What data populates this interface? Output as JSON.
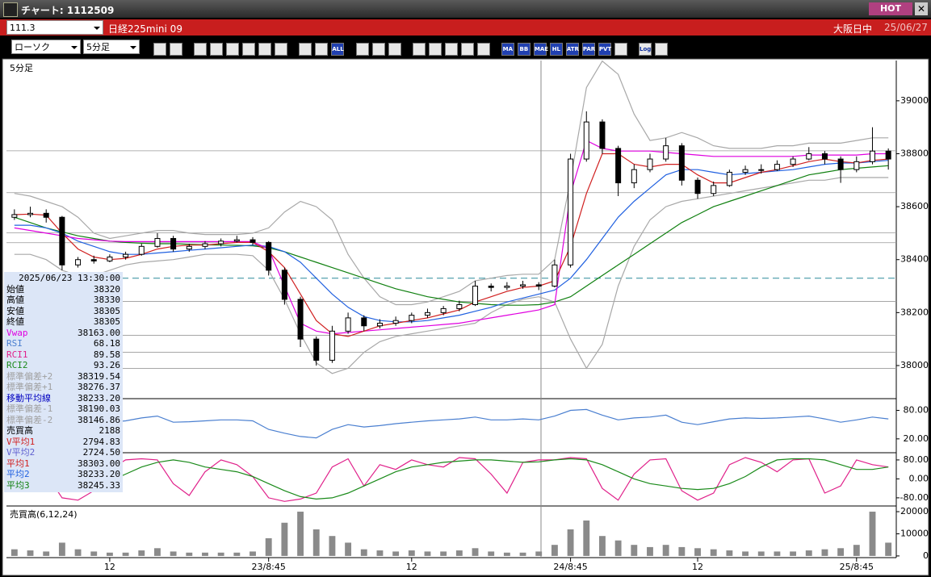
{
  "header": {
    "title": "チャート: 1112509",
    "hot": "HOT",
    "code": "111.3",
    "name": "日経225mini 09",
    "session": "大阪日中",
    "date": "25/06/27"
  },
  "toolbar": {
    "chart_type": "ローソク",
    "period": "5分足",
    "icon_labels": [
      "ALL",
      "MA",
      "BB",
      "MAE",
      "HL",
      "ATR",
      "PAR",
      "PVT",
      "Log"
    ]
  },
  "info": {
    "time": "2025/06/23  13:30:00",
    "rows": [
      {
        "label": "始値",
        "value": "38320",
        "color": "#000000"
      },
      {
        "label": "高値",
        "value": "38330",
        "color": "#000000"
      },
      {
        "label": "安値",
        "value": "38305",
        "color": "#000000"
      },
      {
        "label": "終値",
        "value": "38305",
        "color": "#000000"
      },
      {
        "label": "Vwap",
        "value": "38163.00",
        "color": "#e000e0"
      },
      {
        "label": "RSI",
        "value": "68.18",
        "color": "#4a7fd0"
      },
      {
        "label": "RCI1",
        "value": "89.58",
        "color": "#e0208a"
      },
      {
        "label": "RCI2",
        "value": "93.26",
        "color": "#1a8a1a"
      },
      {
        "label": "標準偏差+2",
        "value": "38319.54",
        "color": "#a0a0a0"
      },
      {
        "label": "標準偏差+1",
        "value": "38276.37",
        "color": "#a0a0a0"
      },
      {
        "label": "移動平均線",
        "value": "38233.20",
        "color": "#0000c0"
      },
      {
        "label": "標準偏差-1",
        "value": "38190.03",
        "color": "#a0a0a0"
      },
      {
        "label": "標準偏差-2",
        "value": "38146.86",
        "color": "#a0a0a0"
      },
      {
        "label": "売買高",
        "value": "2188",
        "color": "#000000"
      },
      {
        "label": "V平均1",
        "value": "2794.83",
        "color": "#d02020"
      },
      {
        "label": "V平均2",
        "value": "2724.50",
        "color": "#6060d0"
      },
      {
        "label": "平均1",
        "value": "38303.00",
        "color": "#d02020"
      },
      {
        "label": "平均2",
        "value": "38233.20",
        "color": "#2060e0"
      },
      {
        "label": "平均3",
        "value": "38245.33",
        "color": "#108010"
      }
    ]
  },
  "chart_data": [
    {
      "type": "candlestick",
      "title": "5分足",
      "ylim": [
        37878,
        39152
      ],
      "yticks": [
        38000,
        38200,
        38400,
        38600,
        38800,
        39000
      ],
      "levels": [
        38811,
        38653,
        38501,
        38464,
        38242,
        38114,
        38050,
        37989
      ],
      "dashed_level": 38330,
      "open": [
        38560,
        38570,
        38575,
        38560,
        38380,
        38400,
        38395,
        38410,
        38420,
        38450,
        38480,
        38440,
        38450,
        38460,
        38470,
        38475,
        38465,
        38360,
        38250,
        38100,
        38020,
        38130,
        38180,
        38150,
        38160,
        38170,
        38190,
        38200,
        38215,
        38230,
        38300,
        38295,
        38300,
        38305,
        38300,
        38380,
        38780,
        38920,
        38820,
        38690,
        38740,
        38780,
        38830,
        38700,
        38650,
        38680,
        38730,
        38740,
        38740,
        38760,
        38780,
        38800,
        38780,
        38740,
        38770,
        38810
      ],
      "high": [
        38590,
        38600,
        38590,
        38565,
        38410,
        38415,
        38420,
        38430,
        38460,
        38500,
        38490,
        38460,
        38470,
        38480,
        38490,
        38485,
        38470,
        38370,
        38260,
        38110,
        38150,
        38200,
        38190,
        38175,
        38185,
        38200,
        38215,
        38225,
        38245,
        38320,
        38310,
        38315,
        38320,
        38315,
        38400,
        38800,
        38960,
        38930,
        38830,
        38760,
        38800,
        38860,
        38840,
        38710,
        38695,
        38740,
        38755,
        38760,
        38775,
        38790,
        38825,
        38810,
        38790,
        38790,
        38900,
        38820
      ],
      "low": [
        38550,
        38560,
        38540,
        38360,
        38370,
        38385,
        38390,
        38400,
        38415,
        38445,
        38430,
        38430,
        38440,
        38450,
        38465,
        38455,
        38340,
        38230,
        38070,
        38000,
        38010,
        38120,
        38130,
        38140,
        38150,
        38160,
        38180,
        38190,
        38205,
        38225,
        38280,
        38285,
        38290,
        38285,
        38295,
        38370,
        38770,
        38800,
        38640,
        38670,
        38730,
        38770,
        38680,
        38630,
        38640,
        38675,
        38720,
        38725,
        38735,
        38750,
        38775,
        38760,
        38690,
        38730,
        38760,
        38740
      ],
      "close": [
        38570,
        38575,
        38560,
        38380,
        38400,
        38395,
        38410,
        38420,
        38450,
        38480,
        38440,
        38450,
        38460,
        38470,
        38475,
        38465,
        38360,
        38250,
        38100,
        38020,
        38130,
        38180,
        38150,
        38160,
        38170,
        38190,
        38200,
        38215,
        38230,
        38300,
        38295,
        38300,
        38305,
        38300,
        38380,
        38780,
        38920,
        38820,
        38690,
        38740,
        38780,
        38830,
        38700,
        38650,
        38680,
        38730,
        38740,
        38740,
        38760,
        38780,
        38800,
        38780,
        38740,
        38770,
        38810,
        38780
      ],
      "series": [
        {
          "color": "#a8a8a8",
          "values": [
            38650,
            38640,
            38620,
            38600,
            38560,
            38500,
            38480,
            38490,
            38500,
            38510,
            38510,
            38500,
            38495,
            38495,
            38495,
            38500,
            38520,
            38580,
            38620,
            38600,
            38550,
            38420,
            38330,
            38260,
            38230,
            38230,
            38240,
            38260,
            38280,
            38320,
            38330,
            38340,
            38345,
            38345,
            38400,
            38700,
            39050,
            39150,
            39100,
            38950,
            38850,
            38860,
            38880,
            38860,
            38830,
            38820,
            38820,
            38820,
            38830,
            38830,
            38840,
            38840,
            38840,
            38850,
            38860,
            38860
          ]
        },
        {
          "color": "#a8a8a8",
          "values": [
            38420,
            38420,
            38400,
            38360,
            38340,
            38340,
            38360,
            38380,
            38390,
            38395,
            38400,
            38410,
            38420,
            38420,
            38420,
            38415,
            38360,
            38250,
            38120,
            38010,
            37970,
            37990,
            38050,
            38090,
            38110,
            38120,
            38130,
            38140,
            38150,
            38160,
            38200,
            38230,
            38250,
            38260,
            38240,
            38100,
            37990,
            38080,
            38300,
            38450,
            38550,
            38600,
            38620,
            38630,
            38640,
            38650,
            38660,
            38670,
            38680,
            38690,
            38700,
            38700,
            38710,
            38710,
            38710,
            38710
          ]
        },
        {
          "color": "#108010",
          "values": [
            38560,
            38540,
            38520,
            38505,
            38490,
            38480,
            38470,
            38465,
            38462,
            38460,
            38460,
            38458,
            38456,
            38455,
            38454,
            38452,
            38445,
            38430,
            38410,
            38390,
            38370,
            38350,
            38330,
            38310,
            38290,
            38275,
            38260,
            38250,
            38240,
            38235,
            38230,
            38228,
            38228,
            38230,
            38240,
            38260,
            38300,
            38340,
            38380,
            38420,
            38460,
            38500,
            38540,
            38570,
            38600,
            38620,
            38640,
            38660,
            38680,
            38700,
            38720,
            38730,
            38740,
            38745,
            38750,
            38755
          ]
        },
        {
          "color": "#2060e0",
          "values": [
            38530,
            38530,
            38520,
            38500,
            38470,
            38450,
            38430,
            38420,
            38420,
            38425,
            38430,
            38435,
            38440,
            38445,
            38450,
            38455,
            38450,
            38430,
            38390,
            38330,
            38270,
            38220,
            38185,
            38170,
            38165,
            38165,
            38170,
            38180,
            38190,
            38205,
            38220,
            38240,
            38255,
            38270,
            38285,
            38330,
            38400,
            38480,
            38560,
            38620,
            38670,
            38720,
            38740,
            38740,
            38730,
            38720,
            38725,
            38730,
            38735,
            38740,
            38750,
            38760,
            38765,
            38765,
            38770,
            38775
          ]
        },
        {
          "color": "#e000e0",
          "values": [
            38520,
            38510,
            38500,
            38490,
            38480,
            38475,
            38470,
            38468,
            38468,
            38468,
            38468,
            38468,
            38468,
            38468,
            38468,
            38468,
            38440,
            38300,
            38160,
            38130,
            38120,
            38125,
            38130,
            38135,
            38140,
            38145,
            38150,
            38155,
            38160,
            38170,
            38180,
            38190,
            38200,
            38210,
            38230,
            38650,
            38850,
            38820,
            38810,
            38810,
            38810,
            38805,
            38800,
            38795,
            38790,
            38790,
            38790,
            38790,
            38790,
            38790,
            38795,
            38795,
            38795,
            38795,
            38800,
            38800
          ]
        },
        {
          "color": "#d02020",
          "values": [
            38570,
            38572,
            38568,
            38500,
            38440,
            38410,
            38400,
            38405,
            38420,
            38440,
            38450,
            38455,
            38455,
            38460,
            38465,
            38465,
            38430,
            38370,
            38270,
            38170,
            38120,
            38110,
            38130,
            38150,
            38160,
            38170,
            38180,
            38195,
            38210,
            38240,
            38260,
            38280,
            38295,
            38300,
            38320,
            38450,
            38650,
            38800,
            38800,
            38760,
            38750,
            38760,
            38760,
            38720,
            38690,
            38690,
            38710,
            38730,
            38740,
            38755,
            38770,
            38780,
            38770,
            38765,
            38775,
            38780
          ]
        }
      ]
    },
    {
      "type": "line",
      "ylim": [
        -7.5,
        103
      ],
      "yticks": [
        {
          "value": 20,
          "label": "20.00"
        },
        {
          "value": 80,
          "label": "80.00"
        }
      ],
      "series": [
        {
          "color": "#4a7fd0",
          "values": [
            62,
            66,
            60,
            48,
            45,
            50,
            55,
            58,
            64,
            68,
            55,
            56,
            58,
            60,
            60,
            58,
            40,
            32,
            25,
            22,
            40,
            50,
            45,
            48,
            52,
            55,
            58,
            60,
            62,
            66,
            60,
            60,
            62,
            60,
            68,
            80,
            82,
            70,
            60,
            64,
            66,
            70,
            55,
            50,
            56,
            62,
            64,
            63,
            64,
            66,
            68,
            62,
            55,
            60,
            66,
            62
          ]
        }
      ]
    },
    {
      "type": "line",
      "ylim": [
        -111,
        107
      ],
      "yticks": [
        {
          "value": 80,
          "label": "80.00"
        },
        {
          "value": 0,
          "label": "0.00"
        },
        {
          "value": -80,
          "label": "-80.00"
        }
      ],
      "series": [
        {
          "color": "#e0208a",
          "values": [
            80,
            85,
            20,
            -80,
            -90,
            -50,
            40,
            80,
            85,
            80,
            -20,
            -70,
            30,
            80,
            60,
            10,
            -80,
            -95,
            -85,
            -60,
            50,
            85,
            -30,
            60,
            40,
            80,
            60,
            50,
            90,
            85,
            20,
            -60,
            70,
            80,
            80,
            90,
            85,
            -40,
            -90,
            20,
            80,
            85,
            -50,
            -90,
            -60,
            60,
            90,
            70,
            30,
            80,
            85,
            -60,
            -30,
            80,
            60,
            50
          ]
        },
        {
          "color": "#1a8a1a",
          "values": [
            70,
            65,
            50,
            20,
            -10,
            -20,
            -10,
            20,
            50,
            70,
            80,
            70,
            50,
            40,
            30,
            10,
            -20,
            -50,
            -75,
            -85,
            -80,
            -60,
            -30,
            0,
            30,
            50,
            60,
            70,
            75,
            80,
            80,
            75,
            70,
            72,
            80,
            85,
            80,
            60,
            30,
            0,
            -20,
            -30,
            -40,
            -45,
            -40,
            -20,
            10,
            50,
            80,
            85,
            85,
            80,
            60,
            40,
            40,
            50
          ]
        }
      ]
    },
    {
      "type": "bar",
      "title": "売買高(6,12,24)",
      "ylim": [
        -400,
        22200
      ],
      "yticks": [
        0,
        10000,
        20000
      ],
      "color": "#8a8a8a",
      "categories": [
        null,
        null,
        null,
        null,
        null,
        null,
        "12",
        null,
        null,
        null,
        null,
        null,
        null,
        null,
        null,
        null,
        "23/8:45",
        null,
        null,
        null,
        null,
        null,
        null,
        null,
        null,
        "12",
        null,
        null,
        null,
        null,
        null,
        null,
        null,
        null,
        null,
        "24/8:45",
        null,
        null,
        null,
        null,
        null,
        null,
        null,
        "12",
        null,
        null,
        null,
        null,
        null,
        null,
        null,
        null,
        null,
        "25/8:45",
        null,
        null
      ],
      "values": [
        3000,
        2500,
        2000,
        6000,
        3000,
        2000,
        1500,
        1500,
        2500,
        3500,
        2000,
        1500,
        1500,
        1500,
        1500,
        2000,
        8000,
        15000,
        20000,
        12000,
        9000,
        6000,
        3000,
        2500,
        2000,
        2500,
        2000,
        2000,
        2500,
        3500,
        2000,
        1500,
        1500,
        2000,
        5000,
        12000,
        16000,
        9000,
        7000,
        5000,
        4000,
        5000,
        4000,
        3500,
        3000,
        2500,
        2000,
        2000,
        2000,
        2000,
        2500,
        3000,
        3500,
        5000,
        20000,
        6000
      ]
    }
  ]
}
